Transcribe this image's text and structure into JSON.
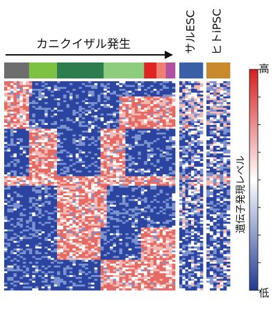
{
  "chart_data": {
    "type": "heatmap",
    "panels": [
      {
        "label": "カニクイザル発生",
        "label_color": "#111111",
        "arrow": true,
        "sample_groups": [
          {
            "color": "#6e6e6e",
            "samples": 8
          },
          {
            "color": "#7dc242",
            "samples": 9
          },
          {
            "color": "#2e7d4f",
            "samples": 15
          },
          {
            "color": "#8fcd7e",
            "samples": 13
          },
          {
            "color": "#e02424",
            "samples": 4
          },
          {
            "color": "#ef7f73",
            "samples": 3
          },
          {
            "color": "#b0509e",
            "samples": 3
          }
        ]
      },
      {
        "label": "サルESC",
        "label_color": "#111111",
        "arrow": false,
        "sample_groups": [
          {
            "color": "#3b5fa6",
            "samples": 8
          }
        ]
      },
      {
        "label": "ヒトiPSC",
        "label_color": "#e02424",
        "arrow": false,
        "sample_groups": [
          {
            "color": "#c98a2e",
            "samples": 7
          }
        ]
      }
    ],
    "color_scale": {
      "colors": [
        "#1f3a93",
        "#ffffff",
        "#d81e1e"
      ],
      "high_label": "高",
      "low_label": "低",
      "title": "遺伝子発現レベル",
      "ticks": 8
    }
  }
}
